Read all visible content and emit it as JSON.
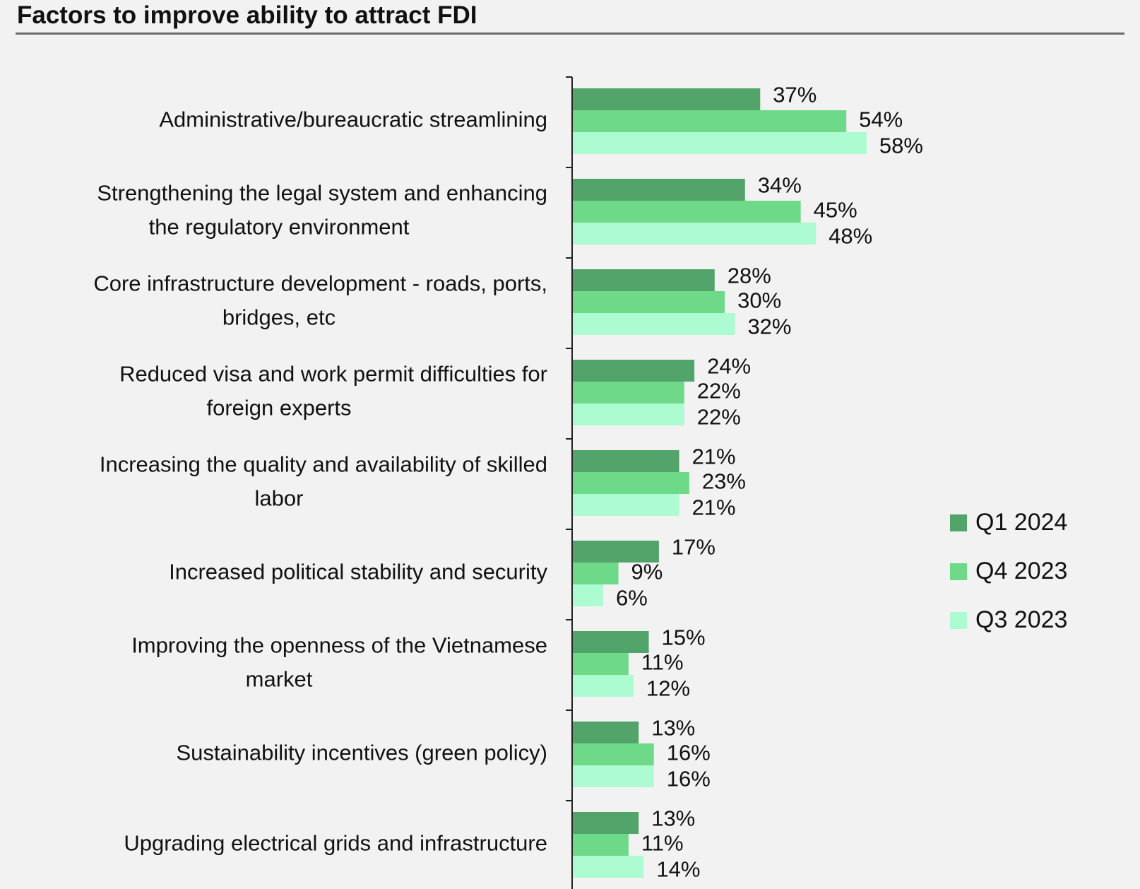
{
  "title": "Factors to improve ability to attract FDI",
  "colors": {
    "Q1 2024": "#52a46a",
    "Q4 2023": "#6fd98a",
    "Q3 2023": "#adfbd1",
    "axis": "#222222",
    "title_rule": "#6b6b6b"
  },
  "legend": {
    "items": [
      {
        "label": "Q1 2024",
        "color": "#52a46a"
      },
      {
        "label": "Q4 2023",
        "color": "#6fd98a"
      },
      {
        "label": "Q3 2023",
        "color": "#adfbd1"
      }
    ]
  },
  "chart_data": {
    "type": "bar",
    "orientation": "horizontal",
    "title": "Factors to improve ability to attract FDI",
    "xlabel": "",
    "ylabel": "",
    "xlim": [
      0,
      60
    ],
    "grid": false,
    "legend_position": "right",
    "categories": [
      [
        "Administrative/bureaucratic streamlining"
      ],
      [
        "Strengthening the legal system and enhancing",
        "the regulatory environment"
      ],
      [
        "Core infrastructure development - roads, ports,",
        "bridges, etc"
      ],
      [
        "Reduced visa and work permit difficulties for",
        "foreign experts"
      ],
      [
        "Increasing the quality and availability of skilled",
        "labor"
      ],
      [
        "Increased political stability and security"
      ],
      [
        "Improving the openness of the Vietnamese",
        "market"
      ],
      [
        "Sustainability incentives (green policy)"
      ],
      [
        "Upgrading electrical grids and infrastructure"
      ]
    ],
    "series": [
      {
        "name": "Q1 2024",
        "values": [
          37,
          34,
          28,
          24,
          21,
          17,
          15,
          13,
          13
        ],
        "labels": [
          "37%",
          "34%",
          "28%",
          "24%",
          "21%",
          "17%",
          "15%",
          "13%",
          "13%"
        ]
      },
      {
        "name": "Q4 2023",
        "values": [
          54,
          45,
          30,
          22,
          23,
          9,
          11,
          16,
          11
        ],
        "labels": [
          "54%",
          "45%",
          "30%",
          "22%",
          "23%",
          "9%",
          "11%",
          "16%",
          "11%"
        ]
      },
      {
        "name": "Q3 2023",
        "values": [
          58,
          48,
          32,
          22,
          21,
          6,
          12,
          16,
          14
        ],
        "labels": [
          "58%",
          "48%",
          "32%",
          "22%",
          "21%",
          "6%",
          "12%",
          "16%",
          "14%"
        ]
      }
    ]
  }
}
